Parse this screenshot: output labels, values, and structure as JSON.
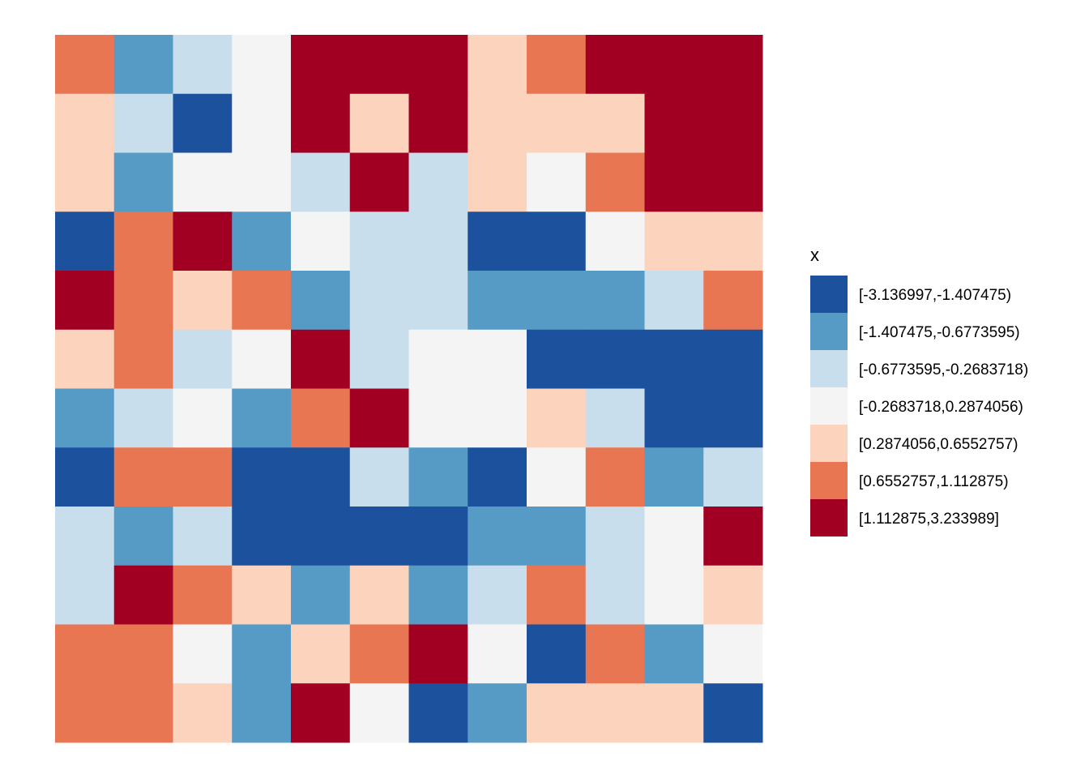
{
  "chart_data": {
    "type": "heatmap",
    "title": "",
    "xlabel": "",
    "ylabel": "",
    "grid": false,
    "axes_shown": false,
    "legend_placement": "right",
    "legend": {
      "title": "x",
      "bins": [
        {
          "label": "[-3.136997,-1.407475)",
          "color": "#1B519D"
        },
        {
          "label": "[-1.407475,-0.6773595)",
          "color": "#569AC6"
        },
        {
          "label": "[-0.6773595,-0.2683718)",
          "color": "#C8DEEC"
        },
        {
          "label": "[-0.2683718,0.2874056)",
          "color": "#F4F4F4"
        },
        {
          "label": "[0.2874056,0.6552757)",
          "color": "#FCD3BC"
        },
        {
          "label": "[0.6552757,1.112875)",
          "color": "#E87652"
        },
        {
          "label": "[1.112875,3.233989]",
          "color": "#A10022"
        }
      ]
    },
    "n_rows": 12,
    "n_cols": 12,
    "cells_bin_index_rows_top_to_bottom": [
      [
        5,
        1,
        2,
        3,
        6,
        6,
        6,
        4,
        5,
        6,
        6,
        6
      ],
      [
        4,
        2,
        0,
        3,
        6,
        4,
        6,
        4,
        4,
        4,
        6,
        6
      ],
      [
        4,
        1,
        3,
        3,
        2,
        6,
        2,
        4,
        3,
        5,
        6,
        6
      ],
      [
        0,
        5,
        6,
        1,
        3,
        2,
        2,
        0,
        0,
        3,
        4,
        4
      ],
      [
        6,
        5,
        4,
        5,
        1,
        2,
        2,
        1,
        1,
        1,
        2,
        5
      ],
      [
        4,
        5,
        2,
        3,
        6,
        2,
        3,
        3,
        0,
        0,
        0,
        0
      ],
      [
        1,
        2,
        3,
        1,
        5,
        6,
        3,
        3,
        4,
        2,
        0,
        0
      ],
      [
        0,
        5,
        5,
        0,
        0,
        2,
        1,
        0,
        3,
        5,
        1,
        2
      ],
      [
        2,
        1,
        2,
        0,
        0,
        0,
        0,
        1,
        1,
        2,
        3,
        6
      ],
      [
        2,
        6,
        5,
        4,
        1,
        4,
        1,
        2,
        5,
        2,
        3,
        4
      ],
      [
        5,
        5,
        3,
        1,
        4,
        5,
        6,
        3,
        0,
        5,
        1,
        3
      ],
      [
        5,
        5,
        4,
        1,
        6,
        3,
        0,
        1,
        4,
        4,
        4,
        0
      ]
    ]
  }
}
